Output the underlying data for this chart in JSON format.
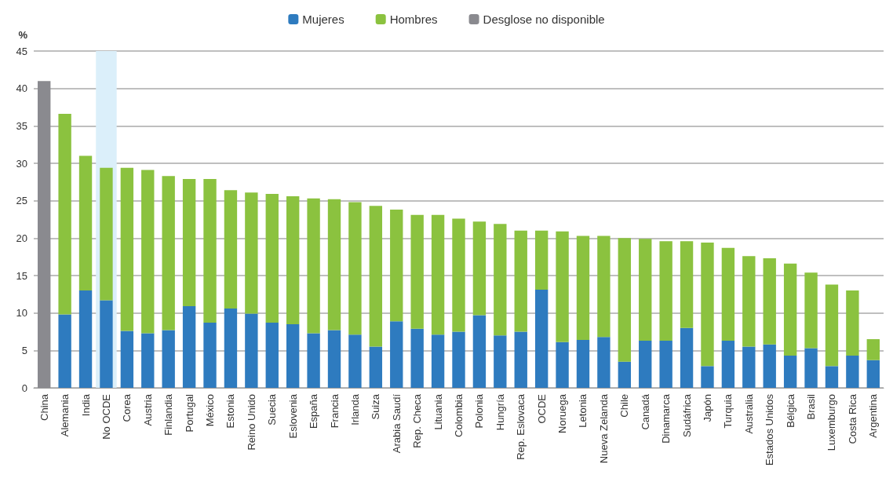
{
  "chart_data": {
    "type": "bar",
    "stacked": true,
    "ylabel": "%",
    "categories": [
      "China",
      "Alemania",
      "India",
      "No OCDE",
      "Corea",
      "Austria",
      "Finlandia",
      "Portugal",
      "México",
      "Estonia",
      "Reino Unido",
      "Suecia",
      "Eslovenia",
      "España",
      "Francia",
      "Irlanda",
      "Suiza",
      "Arabia Saudí",
      "Rep. Checa",
      "Lituania",
      "Colombia",
      "Polonia",
      "Hungría",
      "Rep. Eslovaca",
      "OCDE",
      "Noruega",
      "Letonia",
      "Nueva Zelanda",
      "Chile",
      "Canadá",
      "Dinamarca",
      "Sudáfrica",
      "Japón",
      "Turquia",
      "Australia",
      "Estados Unidos",
      "Bélgica",
      "Brasil",
      "Luxemburgo",
      "Costa Rica",
      "Argentina"
    ],
    "series": [
      {
        "name": "Mujeres",
        "color": "#2e7bbf",
        "values": [
          null,
          9.8,
          13.0,
          11.7,
          7.6,
          7.3,
          7.7,
          10.9,
          8.7,
          10.6,
          9.9,
          8.7,
          8.5,
          7.3,
          7.7,
          7.1,
          5.5,
          8.9,
          7.9,
          7.1,
          7.5,
          9.7,
          7.0,
          7.5,
          13.1,
          6.1,
          6.4,
          6.8,
          3.5,
          6.3,
          6.3,
          8.0,
          2.9,
          6.3,
          5.5,
          5.8,
          4.3,
          5.3,
          2.9,
          4.3,
          3.7
        ]
      },
      {
        "name": "Hombres",
        "color": "#8bc23f",
        "values": [
          null,
          26.8,
          18.0,
          17.7,
          21.8,
          21.8,
          20.6,
          17.0,
          19.2,
          15.8,
          16.2,
          17.2,
          17.1,
          18.0,
          17.5,
          17.7,
          18.8,
          14.9,
          15.2,
          16.0,
          15.1,
          12.5,
          14.9,
          13.5,
          7.9,
          14.8,
          13.9,
          13.5,
          16.5,
          13.6,
          13.3,
          11.6,
          16.5,
          12.4,
          12.1,
          11.5,
          12.3,
          10.1,
          10.9,
          8.7,
          2.8
        ]
      },
      {
        "name": "Desglose no disponible",
        "color": "#8a8a8f",
        "values": [
          41,
          null,
          null,
          null,
          null,
          null,
          null,
          null,
          null,
          null,
          null,
          null,
          null,
          null,
          null,
          null,
          null,
          null,
          null,
          null,
          null,
          null,
          null,
          null,
          null,
          null,
          null,
          null,
          null,
          null,
          null,
          null,
          null,
          null,
          null,
          null,
          null,
          null,
          null,
          null,
          null
        ]
      }
    ],
    "ylim": [
      0,
      45
    ],
    "yticks": [
      0,
      5,
      10,
      15,
      20,
      25,
      30,
      35,
      40,
      45
    ],
    "grid": "y",
    "legend": "top",
    "bands": [
      {
        "axis": "x",
        "from": "No OCDE",
        "to": "No OCDE",
        "color": "#dbeffa"
      }
    ]
  }
}
